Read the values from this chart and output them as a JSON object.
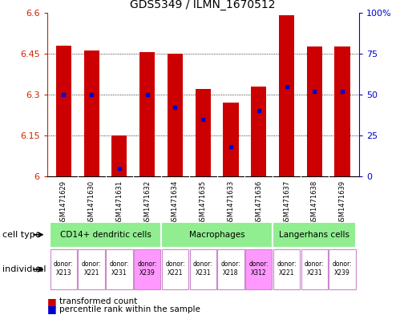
{
  "title": "GDS5349 / ILMN_1670512",
  "samples": [
    "GSM1471629",
    "GSM1471630",
    "GSM1471631",
    "GSM1471632",
    "GSM1471634",
    "GSM1471635",
    "GSM1471633",
    "GSM1471636",
    "GSM1471637",
    "GSM1471638",
    "GSM1471639"
  ],
  "transformed_counts": [
    6.48,
    6.46,
    6.15,
    6.455,
    6.45,
    6.32,
    6.27,
    6.33,
    6.59,
    6.475,
    6.475
  ],
  "percentile_ranks": [
    50,
    50,
    5,
    50,
    42,
    35,
    18,
    40,
    55,
    52,
    52
  ],
  "ymin": 6.0,
  "ymax": 6.6,
  "yticks": [
    6.0,
    6.15,
    6.3,
    6.45,
    6.6
  ],
  "ytick_labels": [
    "6",
    "6.15",
    "6.3",
    "6.45",
    "6.6"
  ],
  "right_yticks": [
    0,
    25,
    50,
    75,
    100
  ],
  "right_ytick_labels": [
    "0",
    "25",
    "50",
    "75",
    "100%"
  ],
  "bar_color": "#cc0000",
  "marker_color": "#0000cc",
  "bar_width": 0.55,
  "ct_ranges": [
    [
      0,
      3
    ],
    [
      4,
      7
    ],
    [
      8,
      10
    ]
  ],
  "ct_labels": [
    "CD14+ dendritic cells",
    "Macrophages",
    "Langerhans cells"
  ],
  "ct_color": "#90ee90",
  "ct_border_color": "#ffffff",
  "sample_bg_color": "#d3d3d3",
  "ind_border_color": "#cc88cc",
  "individuals": [
    {
      "label": "donor:\nX213",
      "idx": 0,
      "color": "#ffffff"
    },
    {
      "label": "donor:\nX221",
      "idx": 1,
      "color": "#ffffff"
    },
    {
      "label": "donor:\nX231",
      "idx": 2,
      "color": "#ffffff"
    },
    {
      "label": "donor:\nX239",
      "idx": 3,
      "color": "#ff99ff"
    },
    {
      "label": "donor:\nX221",
      "idx": 4,
      "color": "#ffffff"
    },
    {
      "label": "donor:\nX231",
      "idx": 5,
      "color": "#ffffff"
    },
    {
      "label": "donor:\nX218",
      "idx": 6,
      "color": "#ffffff"
    },
    {
      "label": "donor:\nX312",
      "idx": 7,
      "color": "#ff99ff"
    },
    {
      "label": "donor:\nX221",
      "idx": 8,
      "color": "#ffffff"
    },
    {
      "label": "donor:\nX231",
      "idx": 9,
      "color": "#ffffff"
    },
    {
      "label": "donor:\nX239",
      "idx": 10,
      "color": "#ffffff"
    }
  ],
  "left_tick_color": "#cc2200",
  "right_tick_color": "#0000cc",
  "bg_white": "#ffffff",
  "bg_light": "#f0f0f0"
}
